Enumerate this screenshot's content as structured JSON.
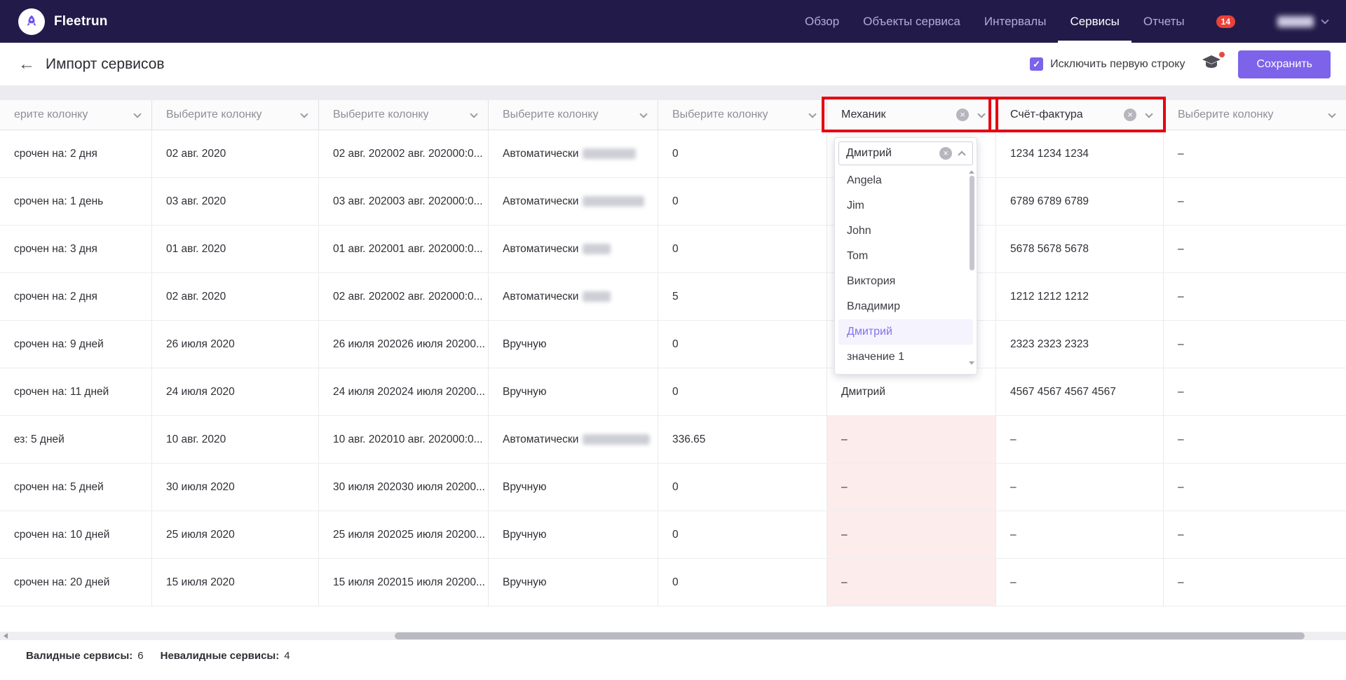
{
  "colors": {
    "accent": "#7c63ea",
    "navbar_bg": "#221b49",
    "highlight_red": "#e60012",
    "invalid_cell_bg": "#fdecec",
    "badge_red": "#ec4138"
  },
  "icons": {
    "back": "←",
    "check": "✓",
    "clear": "×"
  },
  "navbar": {
    "brand": "Fleetrun",
    "items": [
      {
        "label": "Обзор",
        "active": false
      },
      {
        "label": "Объекты сервиса",
        "active": false
      },
      {
        "label": "Интервалы",
        "active": false
      },
      {
        "label": "Сервисы",
        "active": true
      },
      {
        "label": "Отчеты",
        "active": false
      }
    ],
    "notification_badge": "14"
  },
  "header": {
    "title": "Импорт сервисов",
    "exclude_checkbox_label": "Исключить первую строку",
    "exclude_checkbox_checked": true,
    "save_button": "Сохранить"
  },
  "table": {
    "headers": [
      {
        "label": "ерите колонку",
        "placeholder": true,
        "highlighted": false
      },
      {
        "label": "Выберите колонку",
        "placeholder": true,
        "highlighted": false
      },
      {
        "label": "Выберите колонку",
        "placeholder": true,
        "highlighted": false
      },
      {
        "label": "Выберите колонку",
        "placeholder": true,
        "highlighted": false
      },
      {
        "label": "Выберите колонку",
        "placeholder": true,
        "highlighted": false
      },
      {
        "label": "Механик",
        "placeholder": false,
        "highlighted": true
      },
      {
        "label": "Счёт-фактура",
        "placeholder": false,
        "highlighted": true
      },
      {
        "label": "Выберите колонку",
        "placeholder": true,
        "highlighted": false
      }
    ],
    "rows": [
      {
        "cells": [
          {
            "t": "срочен на: 2 дня"
          },
          {
            "t": "02 авг. 2020"
          },
          {
            "t": "02 авг. 202002 авг. 202000:0..."
          },
          {
            "t": "Автоматически",
            "blur": 76
          },
          {
            "t": "0"
          },
          {
            "t": ""
          },
          {
            "t": "1234 1234 1234"
          },
          {
            "t": "–"
          }
        ]
      },
      {
        "cells": [
          {
            "t": "срочен на: 1 день"
          },
          {
            "t": "03 авг. 2020"
          },
          {
            "t": "03 авг. 202003 авг. 202000:0..."
          },
          {
            "t": "Автоматически",
            "blur": 88
          },
          {
            "t": "0"
          },
          {
            "t": ""
          },
          {
            "t": "6789 6789 6789"
          },
          {
            "t": "–"
          }
        ]
      },
      {
        "cells": [
          {
            "t": "срочен на: 3 дня"
          },
          {
            "t": "01 авг. 2020"
          },
          {
            "t": "01 авг. 202001 авг. 202000:0..."
          },
          {
            "t": "Автоматически",
            "blur": 40
          },
          {
            "t": "0"
          },
          {
            "t": ""
          },
          {
            "t": "5678 5678 5678"
          },
          {
            "t": "–"
          }
        ]
      },
      {
        "cells": [
          {
            "t": "срочен на: 2 дня"
          },
          {
            "t": "02 авг. 2020"
          },
          {
            "t": "02 авг. 202002 авг. 202000:0..."
          },
          {
            "t": "Автоматически",
            "blur": 40
          },
          {
            "t": "5"
          },
          {
            "t": ""
          },
          {
            "t": "1212 1212 1212"
          },
          {
            "t": "–"
          }
        ]
      },
      {
        "cells": [
          {
            "t": "срочен на: 9 дней"
          },
          {
            "t": "26 июля 2020"
          },
          {
            "t": "26 июля 202026 июля 20200..."
          },
          {
            "t": "Вручную"
          },
          {
            "t": "0"
          },
          {
            "t": ""
          },
          {
            "t": "2323 2323 2323"
          },
          {
            "t": "–"
          }
        ]
      },
      {
        "cells": [
          {
            "t": "срочен на: 11 дней"
          },
          {
            "t": "24 июля 2020"
          },
          {
            "t": "24 июля 202024 июля 20200..."
          },
          {
            "t": "Вручную"
          },
          {
            "t": "0"
          },
          {
            "t": "Дмитрий"
          },
          {
            "t": "4567 4567 4567 4567"
          },
          {
            "t": "–"
          }
        ]
      },
      {
        "cells": [
          {
            "t": "ез: 5 дней"
          },
          {
            "t": "10 авг. 2020"
          },
          {
            "t": "10 авг. 202010 авг. 202000:0..."
          },
          {
            "t": "Автоматически",
            "blur": 96
          },
          {
            "t": "336.65"
          },
          {
            "t": "–",
            "invalid": true
          },
          {
            "t": "–"
          },
          {
            "t": "–"
          }
        ]
      },
      {
        "cells": [
          {
            "t": "срочен на: 5 дней"
          },
          {
            "t": "30 июля 2020"
          },
          {
            "t": "30 июля 202030 июля 20200..."
          },
          {
            "t": "Вручную"
          },
          {
            "t": "0"
          },
          {
            "t": "–",
            "invalid": true
          },
          {
            "t": "–"
          },
          {
            "t": "–"
          }
        ]
      },
      {
        "cells": [
          {
            "t": "срочен на: 10 дней"
          },
          {
            "t": "25 июля 2020"
          },
          {
            "t": "25 июля 202025 июля 20200..."
          },
          {
            "t": "Вручную"
          },
          {
            "t": "0"
          },
          {
            "t": "–",
            "invalid": true
          },
          {
            "t": "–"
          },
          {
            "t": "–"
          }
        ]
      },
      {
        "cells": [
          {
            "t": "срочен на: 20 дней"
          },
          {
            "t": "15 июля 2020"
          },
          {
            "t": "15 июля 202015 июля 20200..."
          },
          {
            "t": "Вручную"
          },
          {
            "t": "0"
          },
          {
            "t": "–",
            "invalid": true
          },
          {
            "t": "–"
          },
          {
            "t": "–"
          }
        ]
      }
    ]
  },
  "mechanic_dropdown": {
    "value": "Дмитрий",
    "options": [
      {
        "label": "Angela",
        "selected": false
      },
      {
        "label": "Jim",
        "selected": false
      },
      {
        "label": "John",
        "selected": false
      },
      {
        "label": "Tom",
        "selected": false
      },
      {
        "label": "Виктория",
        "selected": false
      },
      {
        "label": "Владимир",
        "selected": false
      },
      {
        "label": "Дмитрий",
        "selected": true
      },
      {
        "label": "значение 1",
        "selected": false
      }
    ]
  },
  "footer": {
    "valid_label": "Валидные сервисы:",
    "valid_value": "6",
    "invalid_label": "Невалидные сервисы:",
    "invalid_value": "4"
  }
}
